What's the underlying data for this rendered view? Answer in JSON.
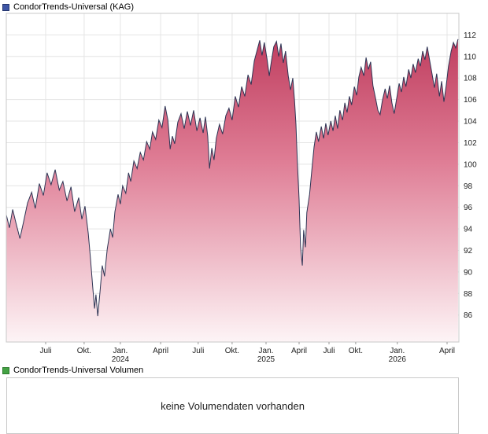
{
  "header": {
    "title": "CondorTrends-Universal (KAG)"
  },
  "volume": {
    "legend_label": "CondorTrends-Universal Volumen",
    "message": "keine Volumendaten vorhanden",
    "legend_color": "#44a244"
  },
  "colors": {
    "price_legend": "#3d55a5",
    "line": "#2e3555",
    "fill_top": "#b93154",
    "fill_mid": "#df7d95",
    "fill_bottom": "#fdf4f6",
    "grid": "#e4e4e4",
    "border": "#c8c8c8",
    "tick_text": "#222222"
  },
  "chart_data": {
    "type": "area",
    "title": "CondorTrends-Universal (KAG)",
    "ylabel": "",
    "xlabel": "",
    "ylim": [
      83.5,
      114
    ],
    "grid": true,
    "legend_position": "top-left",
    "yticks": [
      86,
      88,
      90,
      92,
      94,
      96,
      98,
      100,
      102,
      104,
      106,
      108,
      110,
      112
    ],
    "xticks": [
      {
        "pos": 0.087,
        "label": "Juli",
        "year": ""
      },
      {
        "pos": 0.172,
        "label": "Okt.",
        "year": ""
      },
      {
        "pos": 0.252,
        "label": "Jan.",
        "year": "2024"
      },
      {
        "pos": 0.341,
        "label": "April",
        "year": ""
      },
      {
        "pos": 0.424,
        "label": "Juli",
        "year": ""
      },
      {
        "pos": 0.499,
        "label": "Okt.",
        "year": ""
      },
      {
        "pos": 0.574,
        "label": "Jan.",
        "year": "2025"
      },
      {
        "pos": 0.647,
        "label": "April",
        "year": ""
      },
      {
        "pos": 0.713,
        "label": "Juli",
        "year": ""
      },
      {
        "pos": 0.772,
        "label": "Okt.",
        "year": ""
      },
      {
        "pos": 0.864,
        "label": "Jan.",
        "year": "2026"
      },
      {
        "pos": 0.974,
        "label": "April",
        "year": ""
      }
    ],
    "series": [
      {
        "name": "CondorTrends-Universal (KAG)",
        "points": [
          [
            0.0,
            95.3
          ],
          [
            0.007,
            94.1
          ],
          [
            0.014,
            95.8
          ],
          [
            0.021,
            94.6
          ],
          [
            0.03,
            93.1
          ],
          [
            0.038,
            94.6
          ],
          [
            0.047,
            96.4
          ],
          [
            0.056,
            97.4
          ],
          [
            0.064,
            95.9
          ],
          [
            0.073,
            98.2
          ],
          [
            0.082,
            97.1
          ],
          [
            0.09,
            99.2
          ],
          [
            0.099,
            98.1
          ],
          [
            0.108,
            99.5
          ],
          [
            0.117,
            97.6
          ],
          [
            0.125,
            98.4
          ],
          [
            0.134,
            96.6
          ],
          [
            0.143,
            97.9
          ],
          [
            0.151,
            95.6
          ],
          [
            0.16,
            96.9
          ],
          [
            0.167,
            94.9
          ],
          [
            0.174,
            96.1
          ],
          [
            0.181,
            93.6
          ],
          [
            0.186,
            91.2
          ],
          [
            0.191,
            88.6
          ],
          [
            0.195,
            86.6
          ],
          [
            0.198,
            87.9
          ],
          [
            0.202,
            85.9
          ],
          [
            0.207,
            88.1
          ],
          [
            0.212,
            90.6
          ],
          [
            0.217,
            89.6
          ],
          [
            0.223,
            92.1
          ],
          [
            0.23,
            94.0
          ],
          [
            0.235,
            93.2
          ],
          [
            0.24,
            95.6
          ],
          [
            0.247,
            97.2
          ],
          [
            0.252,
            96.3
          ],
          [
            0.257,
            98.0
          ],
          [
            0.264,
            97.3
          ],
          [
            0.27,
            99.2
          ],
          [
            0.275,
            98.4
          ],
          [
            0.282,
            100.3
          ],
          [
            0.289,
            99.6
          ],
          [
            0.296,
            101.1
          ],
          [
            0.303,
            100.4
          ],
          [
            0.31,
            102.1
          ],
          [
            0.317,
            101.4
          ],
          [
            0.323,
            103.0
          ],
          [
            0.33,
            102.3
          ],
          [
            0.337,
            104.1
          ],
          [
            0.344,
            103.4
          ],
          [
            0.351,
            105.4
          ],
          [
            0.357,
            104.1
          ],
          [
            0.362,
            101.4
          ],
          [
            0.367,
            102.6
          ],
          [
            0.372,
            101.9
          ],
          [
            0.379,
            103.9
          ],
          [
            0.386,
            104.7
          ],
          [
            0.393,
            103.3
          ],
          [
            0.4,
            104.9
          ],
          [
            0.407,
            103.6
          ],
          [
            0.414,
            105.0
          ],
          [
            0.421,
            103.1
          ],
          [
            0.428,
            104.3
          ],
          [
            0.435,
            102.9
          ],
          [
            0.44,
            104.4
          ],
          [
            0.445,
            102.6
          ],
          [
            0.449,
            99.6
          ],
          [
            0.454,
            101.5
          ],
          [
            0.459,
            100.4
          ],
          [
            0.464,
            102.4
          ],
          [
            0.471,
            103.7
          ],
          [
            0.478,
            102.8
          ],
          [
            0.485,
            104.5
          ],
          [
            0.492,
            105.2
          ],
          [
            0.499,
            104.1
          ],
          [
            0.506,
            106.3
          ],
          [
            0.513,
            105.3
          ],
          [
            0.52,
            107.2
          ],
          [
            0.527,
            106.3
          ],
          [
            0.534,
            108.3
          ],
          [
            0.541,
            107.4
          ],
          [
            0.548,
            109.6
          ],
          [
            0.555,
            110.7
          ],
          [
            0.56,
            111.5
          ],
          [
            0.565,
            110.1
          ],
          [
            0.57,
            111.3
          ],
          [
            0.576,
            109.8
          ],
          [
            0.581,
            108.2
          ],
          [
            0.586,
            109.6
          ],
          [
            0.591,
            110.9
          ],
          [
            0.597,
            111.4
          ],
          [
            0.602,
            110.0
          ],
          [
            0.607,
            111.2
          ],
          [
            0.612,
            109.4
          ],
          [
            0.617,
            110.5
          ],
          [
            0.623,
            108.2
          ],
          [
            0.628,
            106.9
          ],
          [
            0.633,
            108.0
          ],
          [
            0.637,
            105.8
          ],
          [
            0.64,
            103.7
          ],
          [
            0.643,
            100.4
          ],
          [
            0.647,
            96.7
          ],
          [
            0.65,
            92.4
          ],
          [
            0.654,
            90.6
          ],
          [
            0.657,
            93.9
          ],
          [
            0.661,
            92.3
          ],
          [
            0.664,
            95.5
          ],
          [
            0.67,
            97.2
          ],
          [
            0.675,
            99.4
          ],
          [
            0.68,
            101.6
          ],
          [
            0.685,
            103.0
          ],
          [
            0.69,
            102.1
          ],
          [
            0.696,
            103.5
          ],
          [
            0.701,
            102.4
          ],
          [
            0.706,
            103.8
          ],
          [
            0.711,
            102.7
          ],
          [
            0.717,
            104.0
          ],
          [
            0.722,
            103.1
          ],
          [
            0.727,
            104.5
          ],
          [
            0.732,
            103.3
          ],
          [
            0.737,
            105.0
          ],
          [
            0.743,
            104.1
          ],
          [
            0.748,
            105.7
          ],
          [
            0.753,
            104.8
          ],
          [
            0.758,
            106.3
          ],
          [
            0.763,
            105.5
          ],
          [
            0.769,
            107.2
          ],
          [
            0.774,
            106.4
          ],
          [
            0.779,
            108.1
          ],
          [
            0.784,
            109.0
          ],
          [
            0.79,
            108.2
          ],
          [
            0.795,
            109.9
          ],
          [
            0.8,
            108.8
          ],
          [
            0.805,
            109.5
          ],
          [
            0.81,
            107.3
          ],
          [
            0.816,
            106.1
          ],
          [
            0.821,
            105.0
          ],
          [
            0.826,
            104.6
          ],
          [
            0.831,
            105.9
          ],
          [
            0.837,
            107.0
          ],
          [
            0.842,
            106.1
          ],
          [
            0.847,
            107.3
          ],
          [
            0.852,
            105.7
          ],
          [
            0.857,
            104.7
          ],
          [
            0.863,
            106.2
          ],
          [
            0.868,
            107.5
          ],
          [
            0.873,
            106.7
          ],
          [
            0.878,
            108.1
          ],
          [
            0.883,
            107.2
          ],
          [
            0.889,
            108.8
          ],
          [
            0.894,
            108.0
          ],
          [
            0.899,
            109.3
          ],
          [
            0.904,
            108.5
          ],
          [
            0.91,
            109.8
          ],
          [
            0.915,
            109.1
          ],
          [
            0.92,
            110.5
          ],
          [
            0.925,
            109.7
          ],
          [
            0.93,
            110.9
          ],
          [
            0.936,
            109.5
          ],
          [
            0.941,
            108.3
          ],
          [
            0.946,
            107.1
          ],
          [
            0.951,
            108.4
          ],
          [
            0.957,
            106.3
          ],
          [
            0.962,
            107.7
          ],
          [
            0.967,
            105.8
          ],
          [
            0.972,
            107.3
          ],
          [
            0.977,
            109.1
          ],
          [
            0.983,
            110.5
          ],
          [
            0.988,
            111.3
          ],
          [
            0.993,
            110.8
          ],
          [
            0.998,
            111.6
          ]
        ]
      }
    ]
  }
}
